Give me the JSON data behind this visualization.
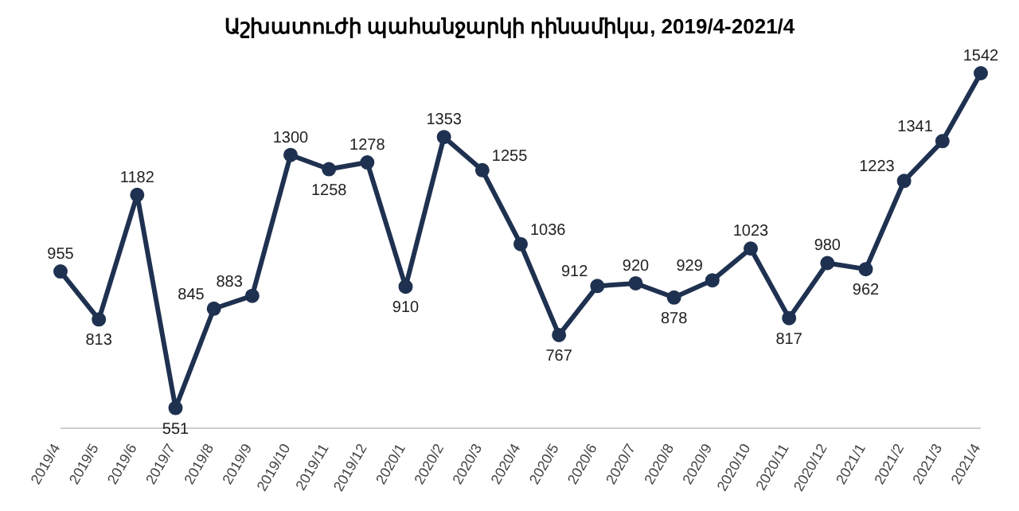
{
  "chart_data": {
    "type": "line",
    "title": "Աշխատուժի պահանջարկի դինամիկա, 2019/4-2021/4",
    "categories": [
      "2019/4",
      "2019/5",
      "2019/6",
      "2019/7",
      "2019/8",
      "2019/9",
      "2019/10",
      "2019/11",
      "2019/12",
      "2020/1",
      "2020/2",
      "2020/3",
      "2020/4",
      "2020/5",
      "2020/6",
      "2020/7",
      "2020/8",
      "2020/9",
      "2020/10",
      "2020/11",
      "2020/12",
      "2021/1",
      "2021/2",
      "2021/3",
      "2021/4"
    ],
    "series": [
      {
        "color": "#1f3150",
        "values": [
          955,
          813,
          1182,
          551,
          845,
          883,
          1300,
          1258,
          1278,
          910,
          1353,
          1255,
          1036,
          767,
          912,
          920,
          878,
          929,
          1023,
          817,
          980,
          962,
          1223,
          1341,
          1542
        ]
      }
    ],
    "data_labels": true,
    "marker": "circle",
    "line_style": "solid",
    "tick_labels": "x"
  }
}
